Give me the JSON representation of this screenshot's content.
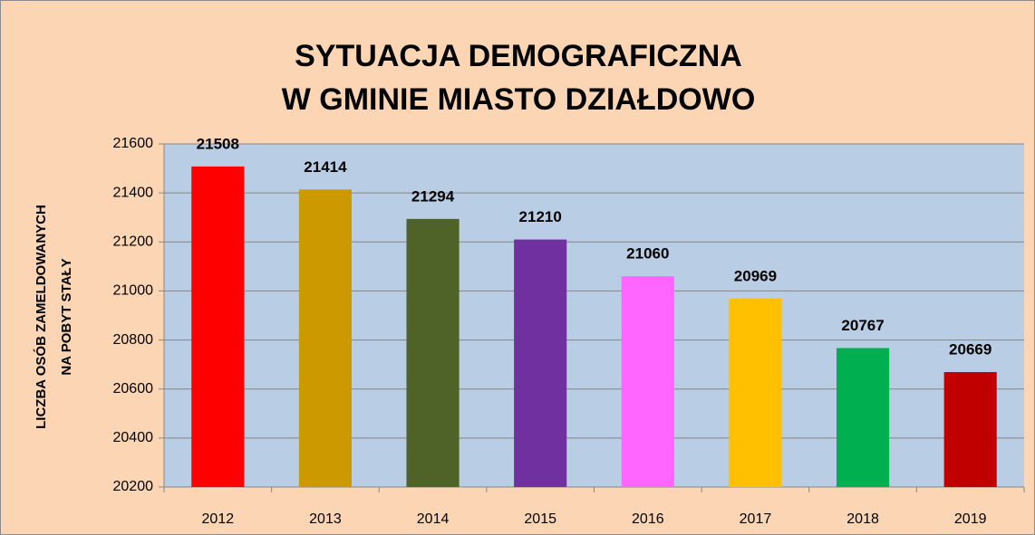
{
  "chart_data": {
    "type": "bar",
    "title": [
      "SYTUACJA DEMOGRAFICZNA",
      "W GMINIE MIASTO DZIAŁDOWO"
    ],
    "y_label": [
      "LICZBA OSÓB ZAMELDOWANYCH",
      "NA POBYT STAŁY"
    ],
    "categories": [
      "2012",
      "2013",
      "2014",
      "2015",
      "2016",
      "2017",
      "2018",
      "2019"
    ],
    "values": [
      21508,
      21414,
      21294,
      21210,
      21060,
      20969,
      20767,
      20669
    ],
    "colors": [
      "#ff0000",
      "#cc9900",
      "#4f6228",
      "#7030a0",
      "#ff66ff",
      "#ffc000",
      "#00b050",
      "#c00000"
    ],
    "ylim": [
      20200,
      21600
    ],
    "yticks": [
      20200,
      20400,
      20600,
      20800,
      21000,
      21200,
      21400,
      21600
    ],
    "grid": true
  }
}
